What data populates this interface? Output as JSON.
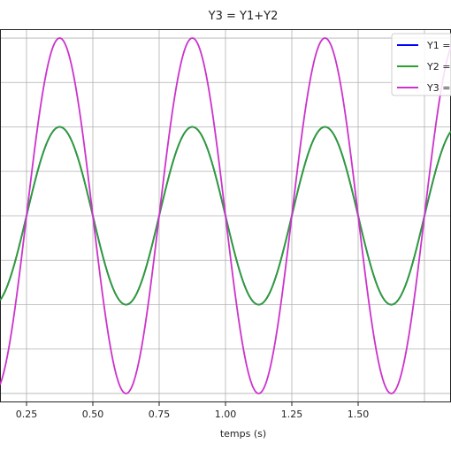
{
  "chart_data": {
    "type": "line",
    "title": "Y3 = Y1+Y2",
    "xlabel": "temps (s)",
    "ylabel": "",
    "xlim": [
      0.15,
      1.85
    ],
    "ylim": [
      -2.1,
      2.1
    ],
    "grid": true,
    "legend_position": "top-right",
    "x_ticks": [
      0.25,
      0.5,
      0.75,
      1.0,
      1.25,
      1.5
    ],
    "x_tick_labels": [
      "0.25",
      "0.50",
      "0.75",
      "1.00",
      "1.25",
      "1.50"
    ],
    "y_grid": [
      -2.0,
      -1.5,
      -1.0,
      -0.5,
      0.0,
      0.5,
      1.0,
      1.5,
      2.0
    ],
    "x_grid": [
      0.25,
      0.5,
      0.75,
      1.0,
      1.25,
      1.5,
      1.75
    ],
    "series": [
      {
        "name": "Y1 =",
        "color": "#0000ff",
        "function": "sin",
        "amplitude": 1.0,
        "frequency": 2.0,
        "phase": 3.14159
      },
      {
        "name": "Y2 =",
        "color": "#2ca02c",
        "function": "sin",
        "amplitude": 1.0,
        "frequency": 2.0,
        "phase": 3.14159
      },
      {
        "name": "Y3 =",
        "color": "#cc33cc",
        "function": "sin",
        "amplitude": 2.0,
        "frequency": 2.0,
        "phase": 3.14159
      }
    ]
  }
}
